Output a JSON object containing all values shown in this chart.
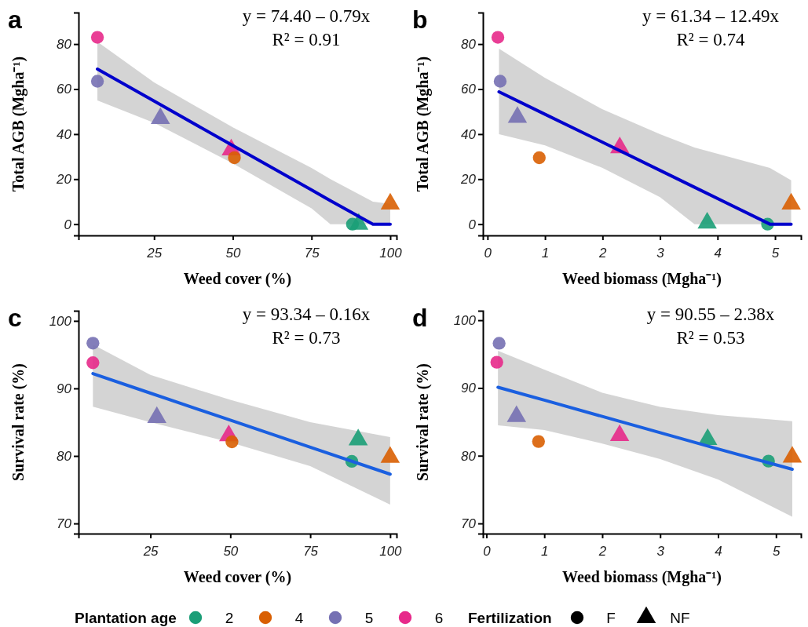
{
  "chart_data": [
    {
      "type": "scatter",
      "title": "a",
      "xlabel": "Weed cover (%)",
      "ylabel": "Total AGB (Mgha⁻¹)",
      "xlim": [
        1,
        102
      ],
      "xticks": [
        25,
        50,
        75,
        100
      ],
      "ylim": [
        -5,
        94
      ],
      "yticks": [
        0,
        20,
        40,
        60,
        80
      ],
      "legend": false,
      "annotations": [
        "y = 74.40 – 0.79x",
        "R² = 0.91"
      ],
      "series": [
        {
          "type": "line",
          "color": "#0000cc",
          "x": [
            7,
            25,
            50,
            75,
            81,
            94.5,
            100
          ],
          "values": [
            68.9,
            54.7,
            34.9,
            15.2,
            10.4,
            0,
            0
          ],
          "lower": [
            55,
            45,
            27,
            7,
            0,
            0,
            0
          ],
          "upper": [
            81,
            63,
            43,
            25,
            20,
            10,
            9
          ]
        },
        {
          "type": "scatter",
          "color": "#e7298a",
          "marker": "circle",
          "x": [
            7
          ],
          "values": [
            83
          ]
        },
        {
          "type": "scatter",
          "color": "#7570b3",
          "marker": "circle",
          "x": [
            7
          ],
          "values": [
            63.5
          ]
        },
        {
          "type": "scatter",
          "color": "#7570b3",
          "marker": "triangle",
          "x": [
            27
          ],
          "values": [
            47
          ]
        },
        {
          "type": "scatter",
          "color": "#e7298a",
          "marker": "triangle",
          "x": [
            49.5
          ],
          "values": [
            33
          ]
        },
        {
          "type": "scatter",
          "color": "#d95f02",
          "marker": "circle",
          "x": [
            50.5
          ],
          "values": [
            29.5
          ]
        },
        {
          "type": "scatter",
          "color": "#1b9e77",
          "marker": "circle",
          "x": [
            88
          ],
          "values": [
            0
          ]
        },
        {
          "type": "scatter",
          "color": "#1b9e77",
          "marker": "triangle",
          "x": [
            90
          ],
          "values": [
            0
          ]
        },
        {
          "type": "scatter",
          "color": "#d95f02",
          "marker": "triangle",
          "x": [
            100
          ],
          "values": [
            9
          ]
        }
      ]
    },
    {
      "type": "scatter",
      "title": "b",
      "xlabel": "Weed biomass (Mgha⁻¹)",
      "ylabel": "Total AGB (Mgha⁻¹)",
      "xlim": [
        -0.08,
        5.45
      ],
      "xticks": [
        0,
        1,
        2,
        3,
        4,
        5
      ],
      "ylim": [
        -5,
        94
      ],
      "yticks": [
        0,
        20,
        40,
        60,
        80
      ],
      "legend": false,
      "annotations": [
        "y = 61.34 – 12.49x",
        "R² = 0.74"
      ],
      "series": [
        {
          "type": "line",
          "color": "#0000cc",
          "x": [
            0.2,
            1,
            2,
            3,
            3.6,
            4.91,
            5.28
          ],
          "values": [
            58.8,
            48.8,
            36.4,
            23.9,
            16.4,
            0,
            0
          ],
          "lower": [
            40,
            35,
            25,
            12,
            0,
            0,
            0
          ],
          "upper": [
            78,
            65,
            51,
            40,
            34,
            25,
            19.5
          ]
        },
        {
          "type": "scatter",
          "color": "#e7298a",
          "marker": "circle",
          "x": [
            0.18
          ],
          "values": [
            83
          ]
        },
        {
          "type": "scatter",
          "color": "#7570b3",
          "marker": "circle",
          "x": [
            0.22
          ],
          "values": [
            63.5
          ]
        },
        {
          "type": "scatter",
          "color": "#7570b3",
          "marker": "triangle",
          "x": [
            0.52
          ],
          "values": [
            47.5
          ]
        },
        {
          "type": "scatter",
          "color": "#d95f02",
          "marker": "circle",
          "x": [
            0.9
          ],
          "values": [
            29.5
          ]
        },
        {
          "type": "scatter",
          "color": "#e7298a",
          "marker": "triangle",
          "x": [
            2.3
          ],
          "values": [
            34
          ]
        },
        {
          "type": "scatter",
          "color": "#1b9e77",
          "marker": "triangle",
          "x": [
            3.82
          ],
          "values": [
            0.5
          ]
        },
        {
          "type": "scatter",
          "color": "#1b9e77",
          "marker": "circle",
          "x": [
            4.87
          ],
          "values": [
            0
          ]
        },
        {
          "type": "scatter",
          "color": "#d95f02",
          "marker": "triangle",
          "x": [
            5.28
          ],
          "values": [
            9
          ]
        }
      ]
    },
    {
      "type": "scatter",
      "title": "c",
      "xlabel": "Weed cover (%)",
      "ylabel": "Survival rate (%)",
      "xlim": [
        2.5,
        102
      ],
      "xticks": [
        25,
        50,
        75,
        100
      ],
      "ylim": [
        68.5,
        101.5
      ],
      "yticks": [
        70,
        80,
        90,
        100
      ],
      "legend": false,
      "annotations": [
        "y = 93.34 – 0.16x",
        "R² = 0.73"
      ],
      "series": [
        {
          "type": "line",
          "color": "#1a5fe0",
          "x": [
            7,
            25,
            50,
            75,
            100
          ],
          "values": [
            92.2,
            89.3,
            85.3,
            81.3,
            77.3
          ],
          "lower": [
            87.3,
            85,
            82,
            78.5,
            72.8
          ],
          "upper": [
            96.5,
            92,
            88.3,
            85,
            82.8
          ]
        },
        {
          "type": "scatter",
          "color": "#7570b3",
          "marker": "circle",
          "x": [
            7
          ],
          "values": [
            96.7
          ]
        },
        {
          "type": "scatter",
          "color": "#e7298a",
          "marker": "circle",
          "x": [
            7
          ],
          "values": [
            93.8
          ]
        },
        {
          "type": "scatter",
          "color": "#7570b3",
          "marker": "triangle",
          "x": [
            27
          ],
          "values": [
            85.7
          ]
        },
        {
          "type": "scatter",
          "color": "#e7298a",
          "marker": "triangle",
          "x": [
            49.5
          ],
          "values": [
            83
          ]
        },
        {
          "type": "scatter",
          "color": "#d95f02",
          "marker": "circle",
          "x": [
            50.5
          ],
          "values": [
            82.1
          ]
        },
        {
          "type": "scatter",
          "color": "#1b9e77",
          "marker": "circle",
          "x": [
            88
          ],
          "values": [
            79.2
          ]
        },
        {
          "type": "scatter",
          "color": "#1b9e77",
          "marker": "triangle",
          "x": [
            90
          ],
          "values": [
            82.4
          ]
        },
        {
          "type": "scatter",
          "color": "#d95f02",
          "marker": "triangle",
          "x": [
            100
          ],
          "values": [
            79.8
          ]
        }
      ]
    },
    {
      "type": "scatter",
      "title": "d",
      "xlabel": "Weed biomass (Mgha⁻¹)",
      "ylabel": "Survival rate (%)",
      "xlim": [
        -0.06,
        5.43
      ],
      "xticks": [
        0,
        1,
        2,
        3,
        4,
        5
      ],
      "ylim": [
        68.5,
        101.4
      ],
      "yticks": [
        70,
        80,
        90,
        100
      ],
      "legend": "bottom",
      "legend_title": "Plantation age",
      "annotations": [
        "y = 90.55 – 2.38x",
        "R² = 0.53",
        "Fertilization",
        "F",
        "NF"
      ],
      "series": [
        {
          "type": "line",
          "color": "#1a5fe0",
          "x": [
            0.2,
            1,
            2,
            3,
            4,
            5.28
          ],
          "values": [
            90.1,
            88.2,
            85.8,
            83.4,
            81.0,
            78.0
          ],
          "lower": [
            84.5,
            83.8,
            81.8,
            79.5,
            76.5,
            71
          ],
          "upper": [
            95.5,
            92.7,
            89.3,
            87.2,
            86,
            85.1
          ]
        },
        {
          "type": "scatter",
          "name": "2",
          "color": "#1b9e77",
          "marker": "circle",
          "x": [
            4.87
          ],
          "values": [
            79.2
          ]
        },
        {
          "type": "scatter",
          "name": "4",
          "color": "#d95f02",
          "marker": "circle",
          "x": [
            0.9
          ],
          "values": [
            82.1
          ]
        },
        {
          "type": "scatter",
          "name": "5",
          "color": "#7570b3",
          "marker": "circle",
          "x": [
            0.22
          ],
          "values": [
            96.6
          ]
        },
        {
          "type": "scatter",
          "name": "6",
          "color": "#e7298a",
          "marker": "circle",
          "x": [
            0.18
          ],
          "values": [
            93.8
          ]
        },
        {
          "type": "scatter",
          "color": "#7570b3",
          "marker": "triangle",
          "x": [
            0.52
          ],
          "values": [
            85.8
          ]
        },
        {
          "type": "scatter",
          "color": "#e7298a",
          "marker": "triangle",
          "x": [
            2.3
          ],
          "values": [
            83
          ]
        },
        {
          "type": "scatter",
          "color": "#1b9e77",
          "marker": "triangle",
          "x": [
            3.82
          ],
          "values": [
            82.4
          ]
        },
        {
          "type": "scatter",
          "color": "#d95f02",
          "marker": "triangle",
          "x": [
            5.28
          ],
          "values": [
            79.8
          ]
        }
      ]
    }
  ]
}
